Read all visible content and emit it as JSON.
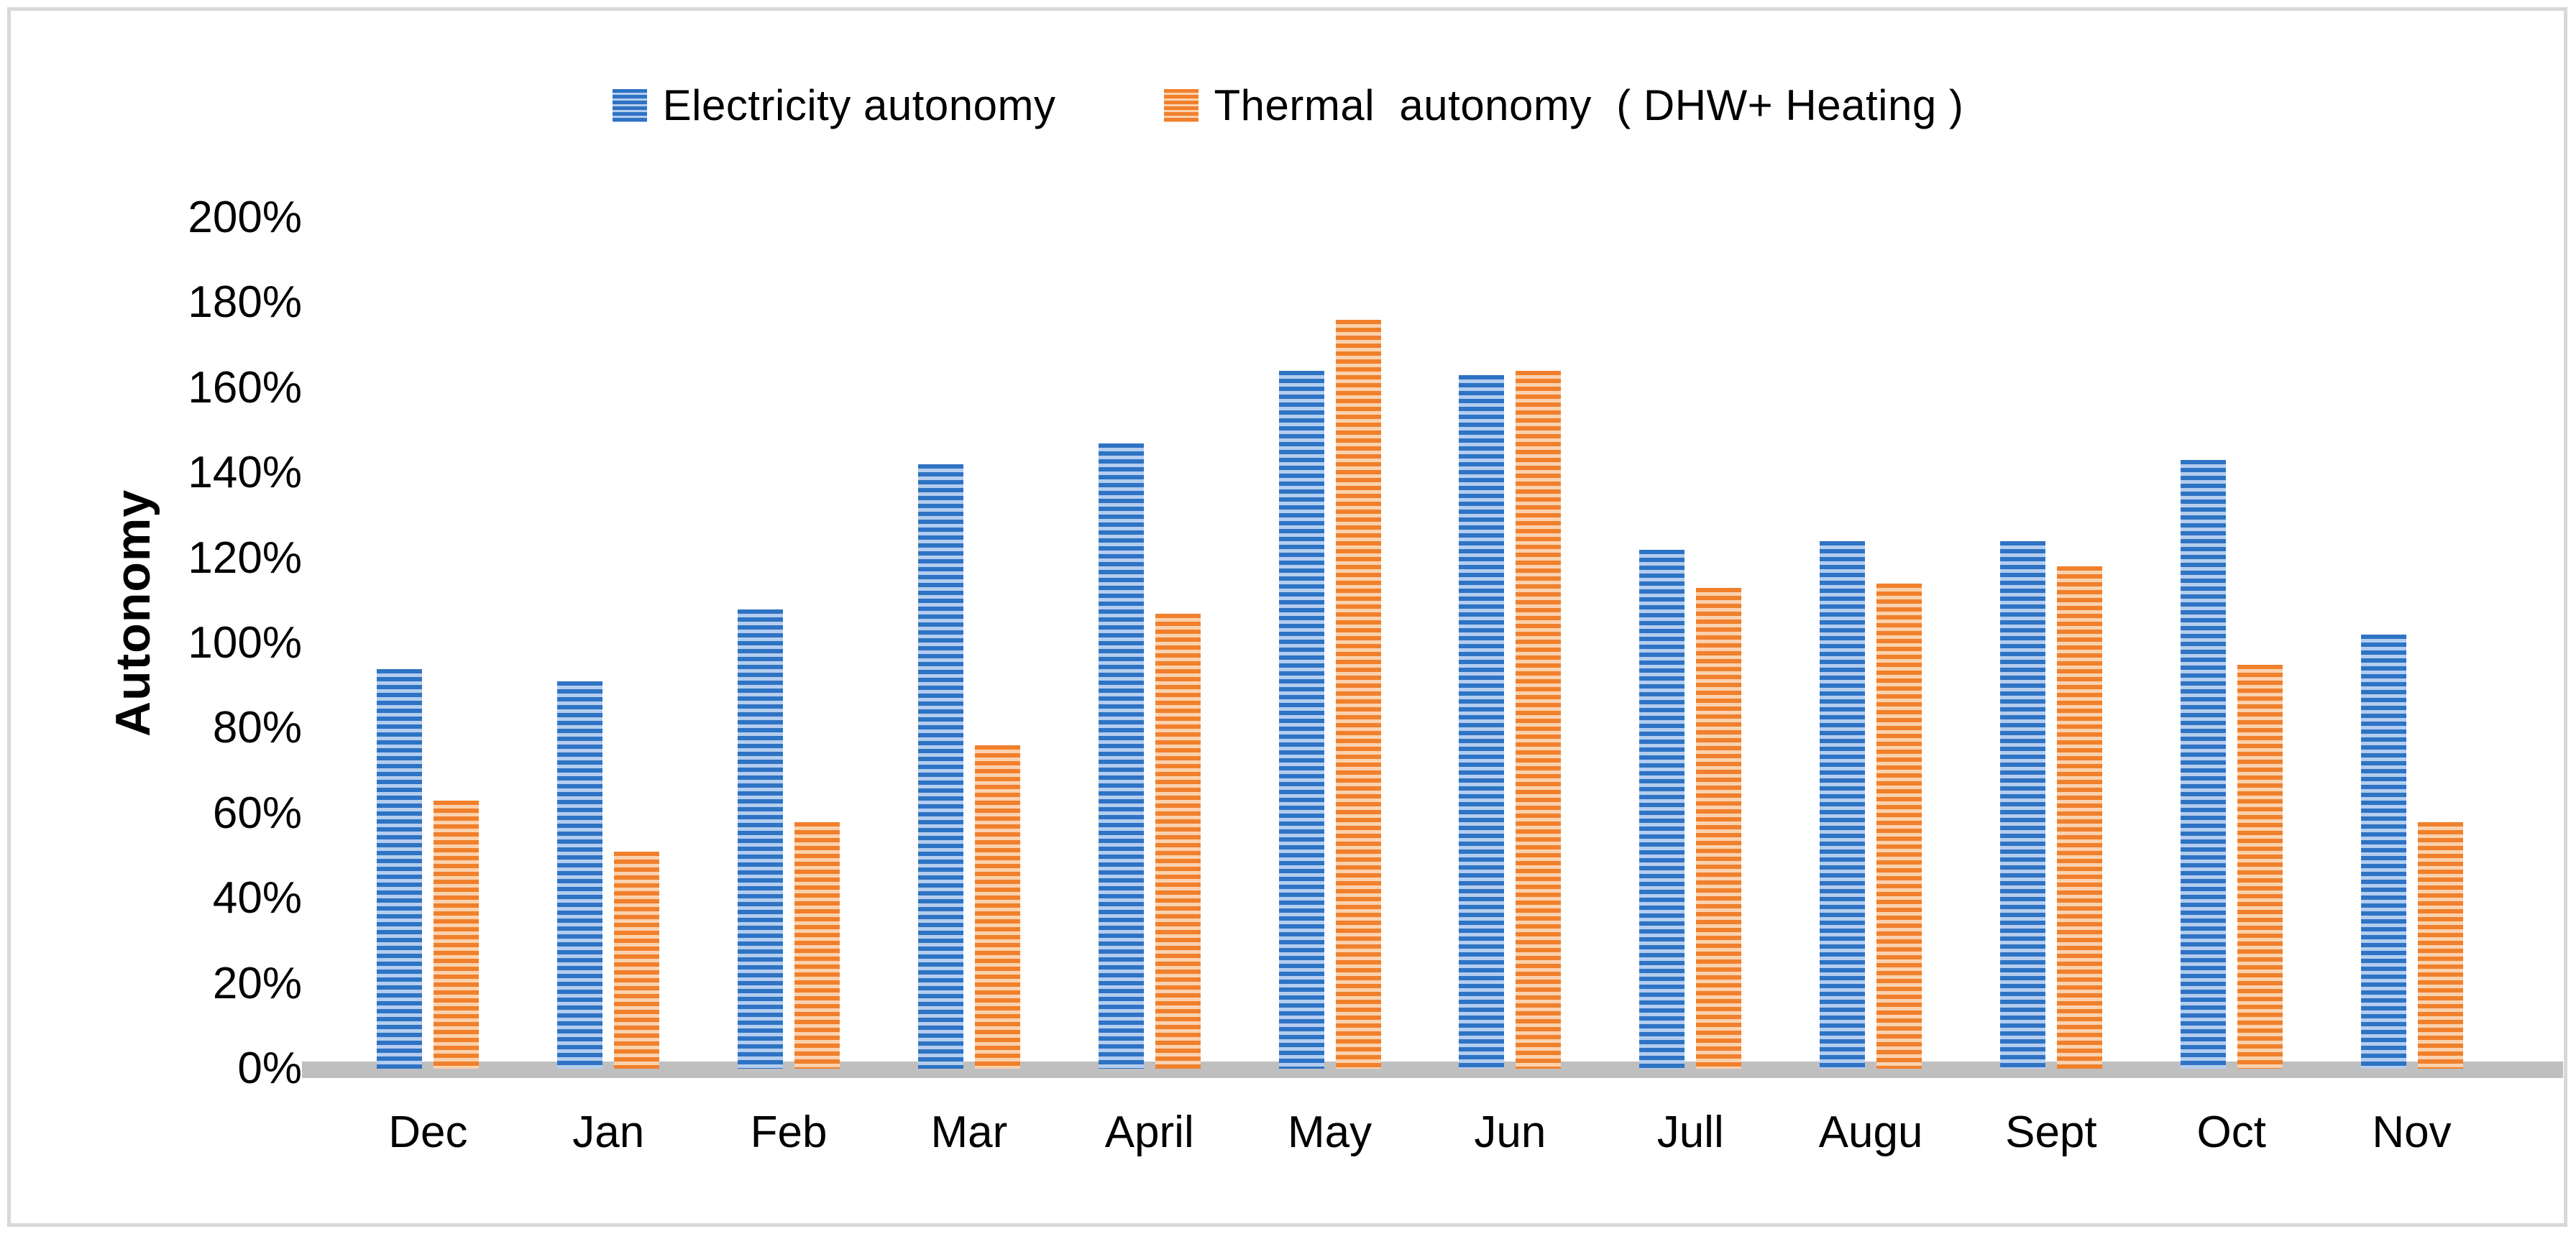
{
  "colors": {
    "blue_dark": "#2e73c4",
    "blue_light": "#b5cdee",
    "orange_dark": "#f0802c",
    "orange_light": "#fbd2ae",
    "axis_line": "#bfbfbf",
    "frame_border": "#d8d8d8",
    "background": "#ffffff",
    "text": "#000000"
  },
  "chart_data": {
    "type": "bar",
    "title": "",
    "xlabel": "",
    "ylabel": "Autonomy",
    "ylim": [
      0,
      200
    ],
    "grid": false,
    "legend_position": "top",
    "categories": [
      "Dec",
      "Jan",
      "Feb",
      "Mar",
      "April",
      "May",
      "Jun",
      "Jull",
      "Augu",
      "Sept",
      "Oct",
      "Nov"
    ],
    "ytick_labels": [
      "0%",
      "20%",
      "40%",
      "60%",
      "80%",
      "100%",
      "120%",
      "140%",
      "160%",
      "180%",
      "200%"
    ],
    "ytick_values": [
      0,
      20,
      40,
      60,
      80,
      100,
      120,
      140,
      160,
      180,
      200
    ],
    "value_unit": "%",
    "series": [
      {
        "name": "Electricity autonomy",
        "color": "#2e73c4",
        "pattern": "horizontal-stripes",
        "values": [
          94,
          91,
          108,
          142,
          147,
          164,
          163,
          122,
          124,
          124,
          143,
          102
        ]
      },
      {
        "name": "Thermal  autonomy  ( DHW+ Heating )",
        "color": "#f0802c",
        "pattern": "horizontal-stripes",
        "values": [
          63,
          51,
          58,
          76,
          107,
          176,
          164,
          113,
          114,
          118,
          95,
          58
        ]
      }
    ]
  }
}
